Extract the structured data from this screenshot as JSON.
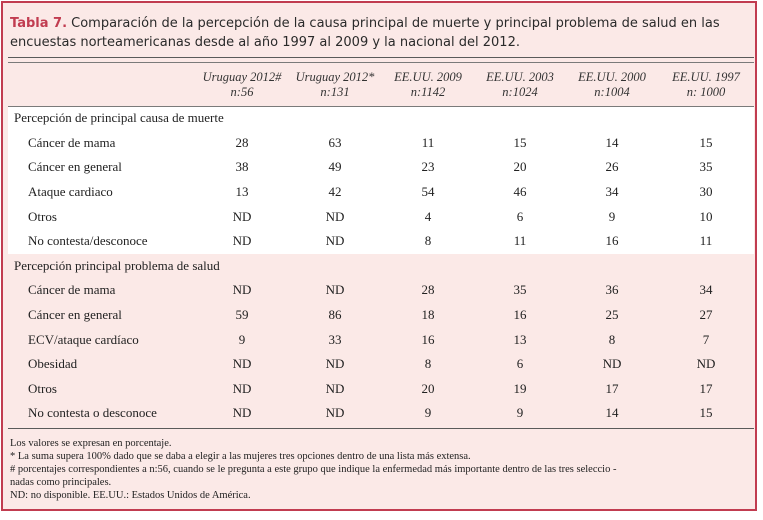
{
  "caption": {
    "label": "Tabla 7.",
    "text": " Comparación de la percepción de la causa principal de muerte y principal problema de salud en las encuestas norteamericanas desde al año 1997 al 2009 y la nacional del 2012."
  },
  "columns": [
    {
      "name": "Uruguay 2012#",
      "n": "n:56"
    },
    {
      "name": "Uruguay 2012*",
      "n": "n:131"
    },
    {
      "name": "EE.UU. 2009",
      "n": "n:1142"
    },
    {
      "name": "EE.UU. 2003",
      "n": "n:1024"
    },
    {
      "name": "EE.UU. 2000",
      "n": "n:1004"
    },
    {
      "name": "EE.UU. 1997",
      "n": "n: 1000"
    }
  ],
  "sections": [
    {
      "title": "Percepción de principal causa de muerte",
      "rows": [
        {
          "label": "Cáncer de mama",
          "values": [
            "28",
            "63",
            "11",
            "15",
            "14",
            "15"
          ]
        },
        {
          "label": "Cáncer en general",
          "values": [
            "38",
            "49",
            "23",
            "20",
            "26",
            "35"
          ]
        },
        {
          "label": "Ataque cardiaco",
          "values": [
            "13",
            "42",
            "54",
            "46",
            "34",
            "30"
          ]
        },
        {
          "label": "Otros",
          "values": [
            "ND",
            "ND",
            "4",
            "6",
            "9",
            "10"
          ]
        },
        {
          "label": "No contesta/desconoce",
          "values": [
            "ND",
            "ND",
            "8",
            "11",
            "16",
            "11"
          ]
        }
      ]
    },
    {
      "title": "Percepción principal problema de salud",
      "rows": [
        {
          "label": "Cáncer de mama",
          "values": [
            "ND",
            "ND",
            "28",
            "35",
            "36",
            "34"
          ]
        },
        {
          "label": "Cáncer en general",
          "values": [
            "59",
            "86",
            "18",
            "16",
            "25",
            "27"
          ]
        },
        {
          "label": "ECV/ataque cardíaco",
          "values": [
            "9",
            "33",
            "16",
            "13",
            "8",
            "7"
          ]
        },
        {
          "label": "Obesidad",
          "values": [
            "ND",
            "ND",
            "8",
            "6",
            "ND",
            "ND"
          ]
        },
        {
          "label": "Otros",
          "values": [
            "ND",
            "ND",
            "20",
            "19",
            "17",
            "17"
          ]
        },
        {
          "label": "No contesta o desconoce",
          "values": [
            "ND",
            "ND",
            "9",
            "9",
            "14",
            "15"
          ]
        }
      ]
    }
  ],
  "notes": [
    "Los valores se expresan en porcentaje.",
    "* La suma supera 100% dado que se daba a elegir a las mujeres tres opciones dentro de una lista más extensa.",
    "# porcentajes correspondientes a n:56, cuando se le pregunta a este grupo que indique la enfermedad más importante dentro de las tres seleccio -",
    "nadas como principales.",
    "ND: no disponible. EE.UU.: Estados Unidos de América."
  ]
}
